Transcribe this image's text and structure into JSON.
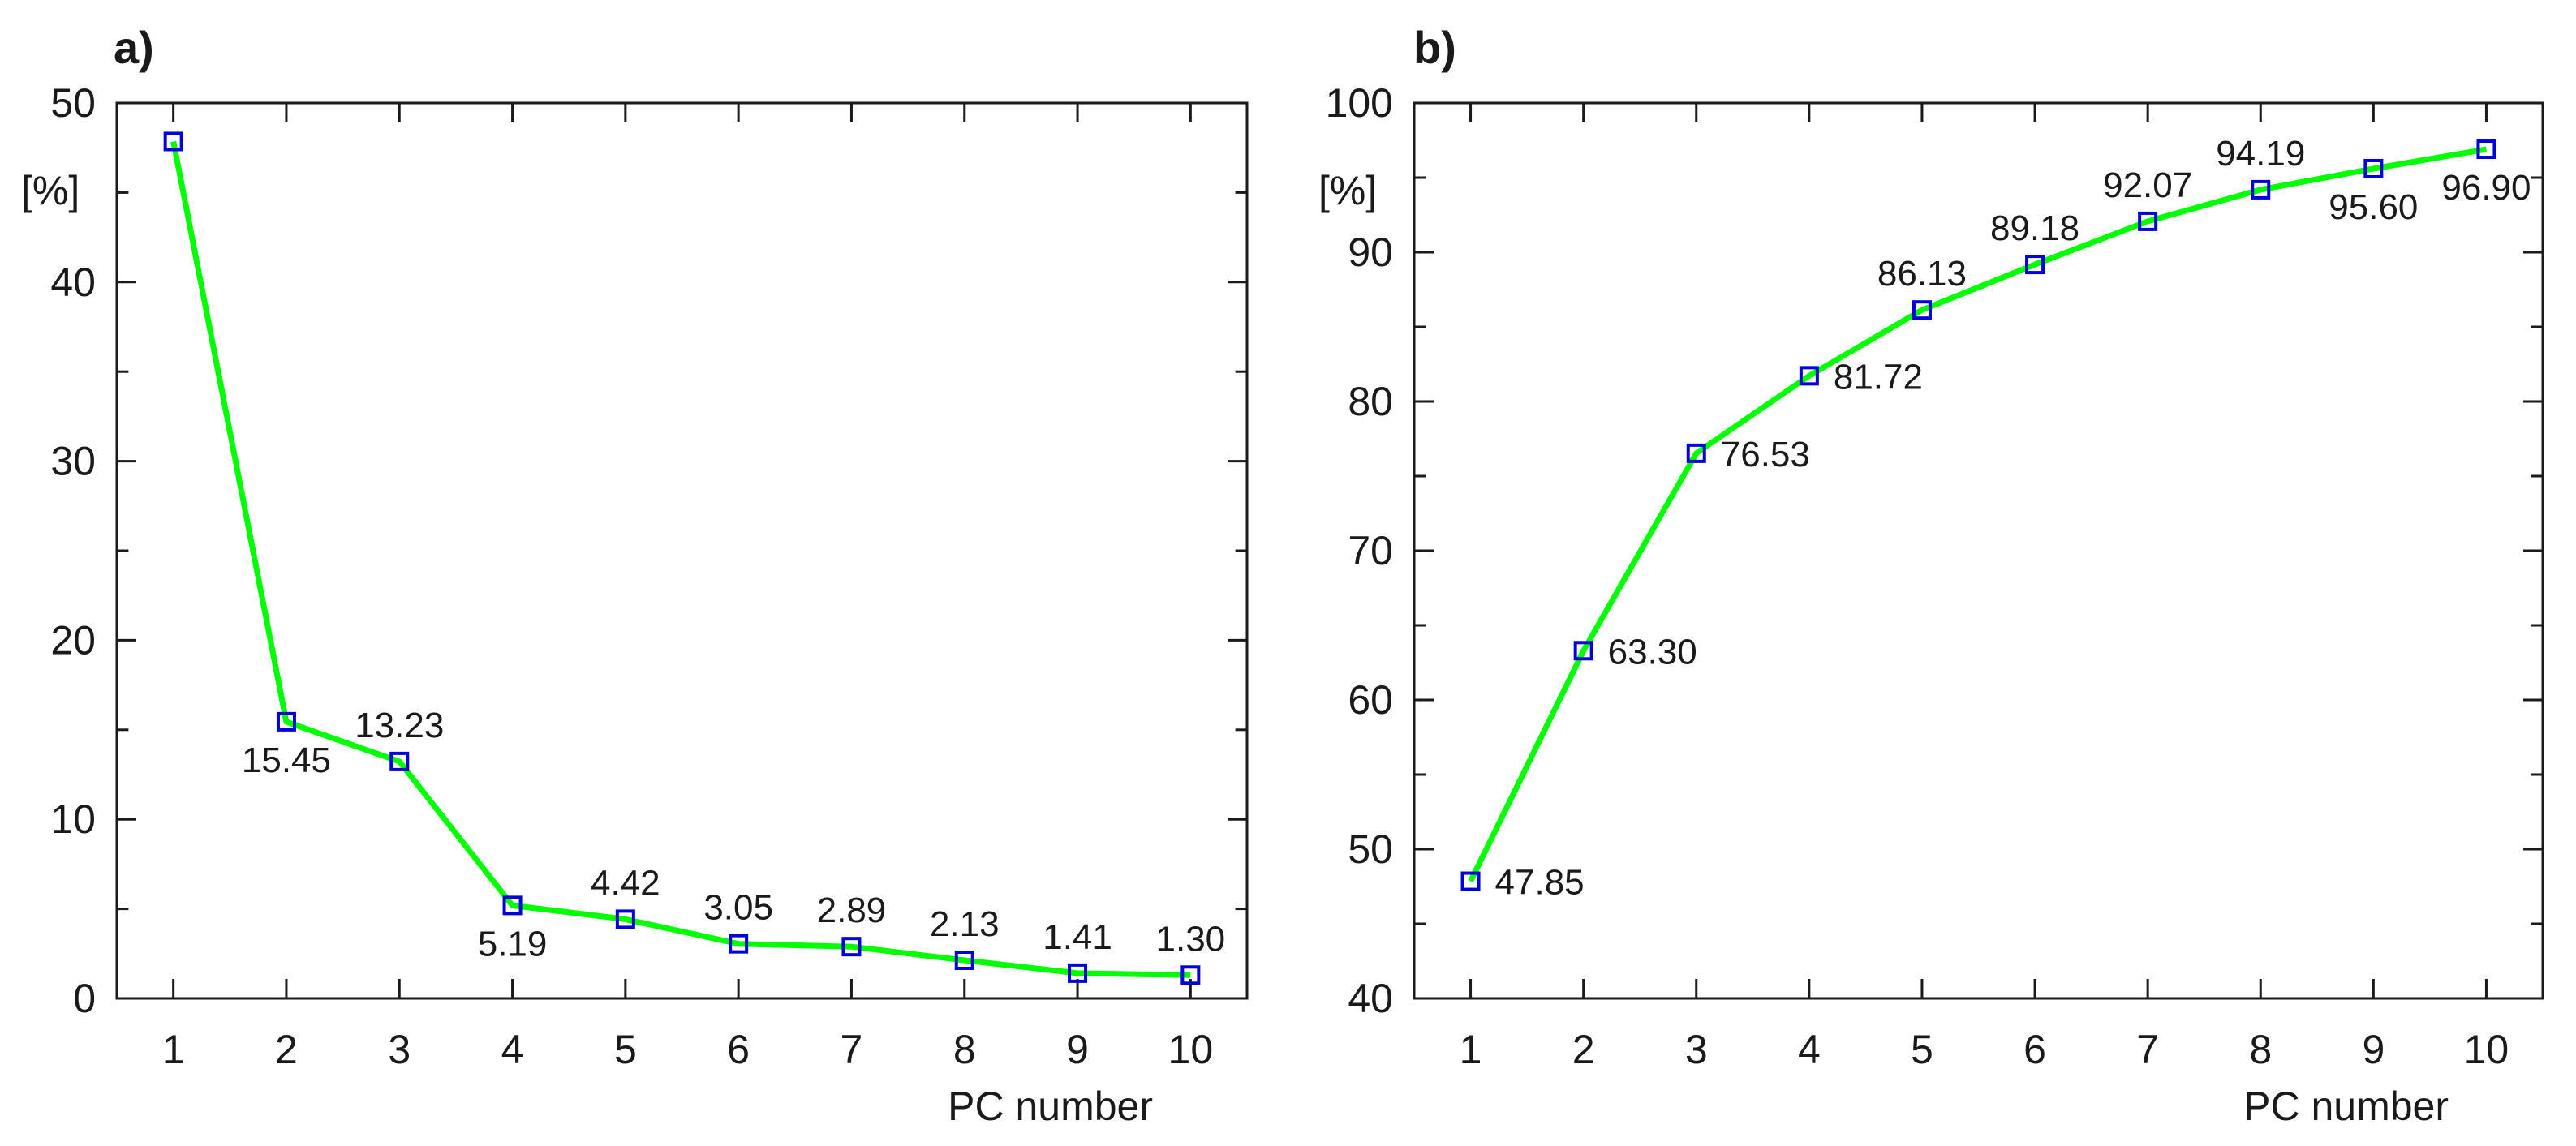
{
  "colors": {
    "line": "#00ff00",
    "marker": "#0000dd",
    "axis": "#1a1a1a",
    "background": "#ffffff"
  },
  "chart_data": [
    {
      "panel": "a)",
      "type": "line",
      "title": "",
      "xlabel": "PC number",
      "ylabel": "[%]",
      "x": [
        1,
        2,
        3,
        4,
        5,
        6,
        7,
        8,
        9,
        10
      ],
      "values": [
        47.85,
        15.45,
        13.23,
        5.19,
        4.42,
        3.05,
        2.89,
        2.13,
        1.41,
        1.3
      ],
      "data_labels": [
        "",
        "15.45",
        "13.23",
        "5.19",
        "4.42",
        "3.05",
        "2.89",
        "2.13",
        "1.41",
        "1.30"
      ],
      "label_positions": [
        "",
        "below",
        "above",
        "below",
        "above",
        "above",
        "above",
        "above",
        "above",
        "above"
      ],
      "xlim": [
        0.5,
        10.5
      ],
      "ylim": [
        0,
        50
      ],
      "xticks": [
        1,
        2,
        3,
        4,
        5,
        6,
        7,
        8,
        9,
        10
      ],
      "yticks": [
        0,
        10,
        20,
        30,
        40,
        50
      ],
      "grid": false,
      "marker": "square"
    },
    {
      "panel": "b)",
      "type": "line",
      "title": "",
      "xlabel": "PC number",
      "ylabel": "[%]",
      "x": [
        1,
        2,
        3,
        4,
        5,
        6,
        7,
        8,
        9,
        10
      ],
      "values": [
        47.85,
        63.3,
        76.53,
        81.72,
        86.13,
        89.18,
        92.07,
        94.19,
        95.6,
        96.9
      ],
      "data_labels": [
        "47.85",
        "63.30",
        "76.53",
        "81.72",
        "86.13",
        "89.18",
        "92.07",
        "94.19",
        "95.60",
        "96.90"
      ],
      "label_positions": [
        "right",
        "right",
        "right",
        "right",
        "above",
        "above",
        "above",
        "above",
        "below",
        "below"
      ],
      "xlim": [
        0.5,
        10.5
      ],
      "ylim": [
        40,
        100
      ],
      "xticks": [
        1,
        2,
        3,
        4,
        5,
        6,
        7,
        8,
        9,
        10
      ],
      "yticks": [
        40,
        50,
        60,
        70,
        80,
        90,
        100
      ],
      "grid": false,
      "marker": "square"
    }
  ]
}
